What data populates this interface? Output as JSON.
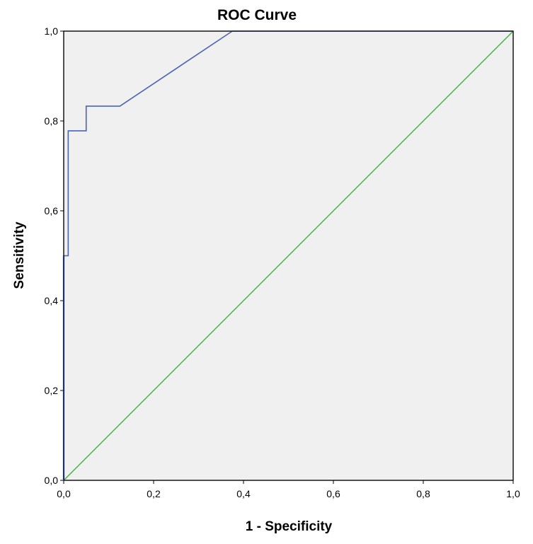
{
  "chart_data": {
    "type": "line",
    "title": "ROC Curve",
    "xlabel": "1 - Specificity",
    "ylabel": "Sensitivity",
    "xlim": [
      0,
      1
    ],
    "ylim": [
      0,
      1
    ],
    "x_ticks": [
      0,
      0.2,
      0.4,
      0.6,
      0.8,
      1.0
    ],
    "y_ticks": [
      0,
      0.2,
      0.4,
      0.6,
      0.8,
      1.0
    ],
    "x_tick_labels": [
      "0,0",
      "0,2",
      "0,4",
      "0,6",
      "0,8",
      "1,0"
    ],
    "y_tick_labels": [
      "0,0",
      "0,2",
      "0,4",
      "0,6",
      "0,8",
      "1,0"
    ],
    "grid": false,
    "legend": "none",
    "series": [
      {
        "color": "#4a64b4",
        "x": [
          0,
          0,
          0.01,
          0.01,
          0.05,
          0.05,
          0.125,
          0.375,
          1.0
        ],
        "y": [
          0,
          0.5,
          0.5,
          0.778,
          0.778,
          0.833,
          0.833,
          1.0,
          1.0
        ]
      },
      {
        "color": "#3cb43c",
        "x": [
          0,
          1
        ],
        "y": [
          0,
          1
        ]
      }
    ],
    "colors": {
      "plot_background": "#f0f0f0",
      "frame": "#000000"
    }
  }
}
